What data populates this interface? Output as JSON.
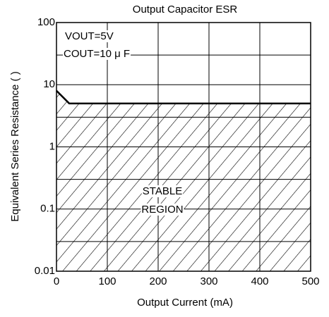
{
  "chart_data": {
    "type": "line",
    "title": "Output Capacitor ESR",
    "xlabel": "Output Current (mA)",
    "ylabel": "Equivalent Series Resistance (  )",
    "x": [
      0,
      25,
      500
    ],
    "values": [
      8,
      5,
      5
    ],
    "color": "#000000",
    "xlim": [
      0,
      500
    ],
    "xticks": [
      0,
      100,
      200,
      300,
      400,
      500
    ],
    "ylim": [
      0.01,
      100
    ],
    "yticks": [
      0.01,
      0.1,
      1,
      10,
      100
    ],
    "minor_yticks": [
      0.03,
      0.3,
      3,
      30
    ],
    "yscale": "log",
    "grid": true,
    "annotations": [
      "VOUT=5V",
      "COUT=10 μ F",
      "STABLE",
      "REGION"
    ]
  }
}
